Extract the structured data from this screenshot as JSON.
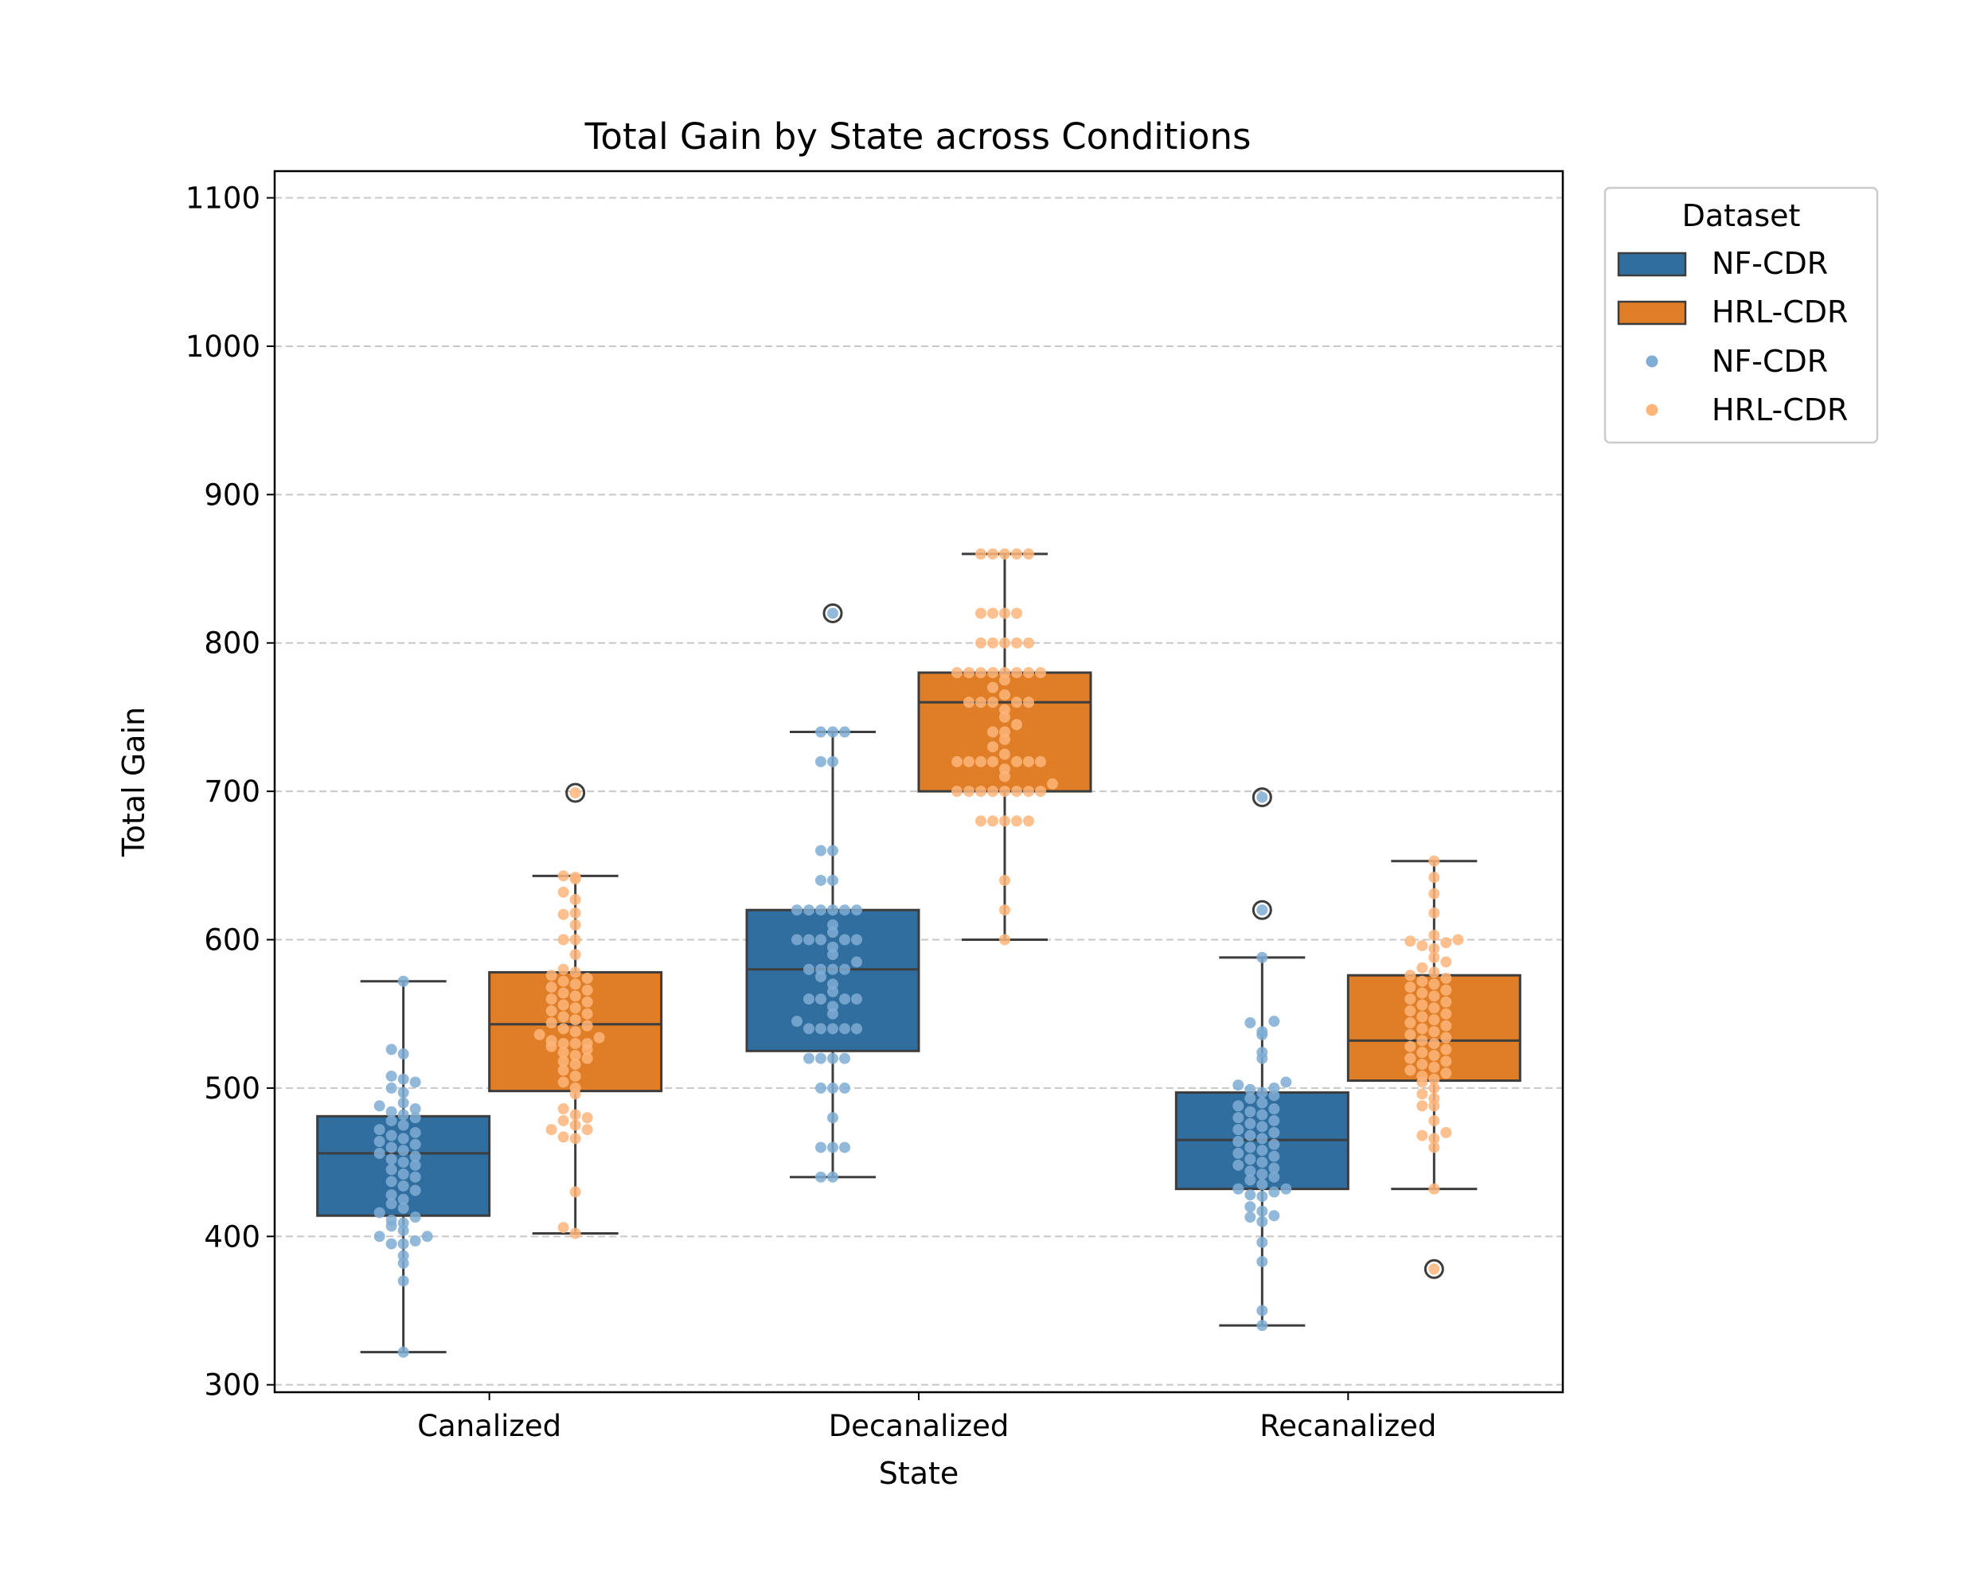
{
  "chart_data": {
    "type": "box",
    "title": "Total Gain by State across Conditions",
    "xlabel": "State",
    "ylabel": "Total Gain",
    "categories": [
      "Canalized",
      "Decanalized",
      "Recanalized"
    ],
    "ylim": [
      295,
      1118
    ],
    "yticks": [
      300,
      400,
      500,
      600,
      700,
      800,
      900,
      1000,
      1100
    ],
    "grid": "y-dashed",
    "legend": {
      "title": "Dataset",
      "position": "outside-top-right",
      "box_entries": [
        "NF-CDR",
        "HRL-CDR"
      ],
      "point_entries": [
        "NF-CDR",
        "HRL-CDR"
      ]
    },
    "series": [
      {
        "name": "NF-CDR",
        "color": "#2f6e9f",
        "point_color": "#7fadd3",
        "boxes": [
          {
            "category": "Canalized",
            "whisker_low": 322,
            "q1": 414,
            "median": 456,
            "q3": 481,
            "whisker_high": 572,
            "outliers": [],
            "points": [
              572,
              526,
              523,
              508,
              506,
              504,
              500,
              497,
              490,
              488,
              486,
              484,
              482,
              480,
              478,
              475,
              472,
              470,
              468,
              466,
              464,
              462,
              460,
              458,
              456,
              454,
              452,
              450,
              448,
              445,
              442,
              440,
              437,
              434,
              431,
              428,
              425,
              422,
              419,
              416,
              413,
              411,
              409,
              407,
              404,
              400,
              400,
              397,
              395,
              395,
              387,
              382,
              370,
              322
            ]
          },
          {
            "category": "Decanalized",
            "whisker_low": 440,
            "q1": 525,
            "median": 580,
            "q3": 620,
            "whisker_high": 740,
            "outliers": [
              820
            ],
            "points": [
              820,
              740,
              740,
              740,
              720,
              720,
              660,
              660,
              640,
              640,
              620,
              620,
              620,
              620,
              620,
              620,
              610,
              605,
              600,
              600,
              600,
              600,
              600,
              595,
              590,
              585,
              580,
              580,
              580,
              580,
              575,
              570,
              565,
              560,
              560,
              560,
              560,
              555,
              550,
              545,
              540,
              540,
              540,
              540,
              540,
              520,
              520,
              520,
              520,
              500,
              500,
              500,
              480,
              460,
              460,
              460,
              440,
              440
            ]
          },
          {
            "category": "Recanalized",
            "whisker_low": 340,
            "q1": 432,
            "median": 465,
            "q3": 497,
            "whisker_high": 588,
            "outliers": [
              696,
              620
            ],
            "points": [
              696,
              620,
              588,
              545,
              544,
              538,
              536,
              524,
              520,
              504,
              502,
              500,
              499,
              497,
              495,
              493,
              490,
              488,
              486,
              484,
              482,
              480,
              478,
              476,
              474,
              472,
              470,
              468,
              466,
              464,
              462,
              460,
              458,
              456,
              454,
              452,
              450,
              448,
              446,
              444,
              442,
              440,
              438,
              435,
              432,
              432,
              430,
              428,
              427,
              420,
              417,
              414,
              413,
              410,
              396,
              383,
              350,
              340
            ]
          }
        ]
      },
      {
        "name": "HRL-CDR",
        "color": "#e07d27",
        "point_color": "#fdb57a",
        "boxes": [
          {
            "category": "Canalized",
            "whisker_low": 402,
            "q1": 498,
            "median": 543,
            "q3": 578,
            "whisker_high": 643,
            "outliers": [
              699
            ],
            "points": [
              699,
              643,
              642,
              641,
              632,
              627,
              618,
              617,
              610,
              600,
              600,
              590,
              580,
              578,
              576,
              574,
              572,
              570,
              568,
              566,
              564,
              562,
              560,
              558,
              556,
              554,
              552,
              550,
              548,
              546,
              544,
              542,
              540,
              538,
              536,
              534,
              532,
              530,
              530,
              530,
              528,
              526,
              524,
              522,
              520,
              518,
              516,
              512,
              508,
              504,
              500,
              496,
              486,
              482,
              480,
              478,
              475,
              472,
              472,
              467,
              466,
              430,
              406,
              402
            ]
          },
          {
            "category": "Decanalized",
            "whisker_low": 600,
            "q1": 700,
            "median": 760,
            "q3": 780,
            "whisker_high": 860,
            "outliers": [],
            "points": [
              860,
              860,
              860,
              860,
              860,
              820,
              820,
              820,
              820,
              800,
              800,
              800,
              800,
              800,
              780,
              780,
              780,
              780,
              780,
              780,
              780,
              780,
              775,
              770,
              765,
              760,
              760,
              760,
              760,
              760,
              755,
              750,
              745,
              740,
              740,
              735,
              730,
              725,
              720,
              720,
              720,
              720,
              720,
              720,
              720,
              715,
              710,
              705,
              700,
              700,
              700,
              700,
              700,
              700,
              700,
              700,
              680,
              680,
              680,
              680,
              680,
              640,
              620,
              600
            ]
          },
          {
            "category": "Recanalized",
            "whisker_low": 432,
            "q1": 505,
            "median": 532,
            "q3": 576,
            "whisker_high": 653,
            "outliers": [
              378
            ],
            "points": [
              653,
              642,
              631,
              618,
              603,
              600,
              599,
              598,
              596,
              594,
              588,
              585,
              581,
              578,
              576,
              574,
              572,
              570,
              568,
              566,
              564,
              562,
              560,
              558,
              556,
              554,
              552,
              550,
              548,
              546,
              544,
              542,
              540,
              538,
              536,
              534,
              532,
              530,
              528,
              526,
              524,
              522,
              520,
              518,
              516,
              514,
              512,
              510,
              508,
              506,
              504,
              500,
              496,
              493,
              488,
              488,
              478,
              470,
              468,
              466,
              460,
              432,
              378
            ]
          }
        ]
      }
    ]
  }
}
